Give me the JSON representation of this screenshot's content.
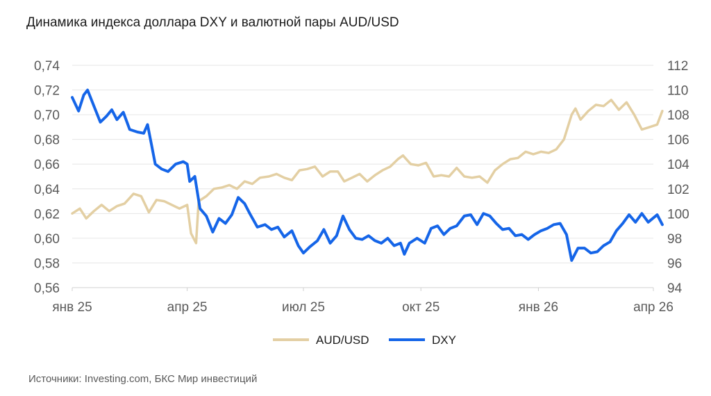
{
  "chart": {
    "title": "Динамика индекса доллара DXY и валютной пары AUD/USD",
    "source": "Источники: Investing.com, БКС Мир инвестиций"
  },
  "chart_data": {
    "type": "line",
    "title": "Динамика индекса доллара DXY и валютной пары AUD/USD",
    "x_ticks": [
      "янв 25",
      "апр 25",
      "июл 25",
      "окт 25",
      "янв 26",
      "апр 26"
    ],
    "x_tick_dates": [
      "2025-01-01",
      "2025-04-01",
      "2025-07-01",
      "2025-10-01",
      "2026-01-01",
      "2026-04-01"
    ],
    "y_left": {
      "ticks": [
        "0,74",
        "0,72",
        "0,70",
        "0,68",
        "0,66",
        "0,64",
        "0,62",
        "0,60",
        "0,58",
        "0,56"
      ],
      "range": [
        0.56,
        0.74
      ]
    },
    "y_right": {
      "ticks": [
        "112",
        "110",
        "108",
        "106",
        "104",
        "102",
        "100",
        "98",
        "96",
        "94"
      ],
      "range": [
        94,
        112
      ]
    },
    "grid": "horizontal",
    "legend_position": "bottom-center",
    "series": [
      {
        "name": "AUD/USD",
        "axis": "left",
        "color": "#e3cfa3",
        "points": [
          [
            "2025-01-01",
            0.62
          ],
          [
            "2025-01-07",
            0.624
          ],
          [
            "2025-01-12",
            0.616
          ],
          [
            "2025-01-18",
            0.622
          ],
          [
            "2025-01-24",
            0.627
          ],
          [
            "2025-01-30",
            0.622
          ],
          [
            "2025-02-05",
            0.626
          ],
          [
            "2025-02-11",
            0.628
          ],
          [
            "2025-02-18",
            0.636
          ],
          [
            "2025-02-24",
            0.634
          ],
          [
            "2025-03-02",
            0.621
          ],
          [
            "2025-03-08",
            0.631
          ],
          [
            "2025-03-14",
            0.63
          ],
          [
            "2025-03-20",
            0.627
          ],
          [
            "2025-03-26",
            0.624
          ],
          [
            "2025-04-01",
            0.627
          ],
          [
            "2025-04-04",
            0.604
          ],
          [
            "2025-04-08",
            0.596
          ],
          [
            "2025-04-10",
            0.63
          ],
          [
            "2025-04-16",
            0.634
          ],
          [
            "2025-04-22",
            0.64
          ],
          [
            "2025-04-28",
            0.641
          ],
          [
            "2025-05-04",
            0.643
          ],
          [
            "2025-05-10",
            0.64
          ],
          [
            "2025-05-16",
            0.646
          ],
          [
            "2025-05-22",
            0.644
          ],
          [
            "2025-05-28",
            0.649
          ],
          [
            "2025-06-04",
            0.65
          ],
          [
            "2025-06-10",
            0.652
          ],
          [
            "2025-06-16",
            0.649
          ],
          [
            "2025-06-22",
            0.647
          ],
          [
            "2025-06-28",
            0.655
          ],
          [
            "2025-07-04",
            0.656
          ],
          [
            "2025-07-10",
            0.658
          ],
          [
            "2025-07-16",
            0.65
          ],
          [
            "2025-07-22",
            0.654
          ],
          [
            "2025-07-28",
            0.654
          ],
          [
            "2025-08-02",
            0.646
          ],
          [
            "2025-08-08",
            0.649
          ],
          [
            "2025-08-14",
            0.652
          ],
          [
            "2025-08-20",
            0.646
          ],
          [
            "2025-08-26",
            0.651
          ],
          [
            "2025-09-01",
            0.655
          ],
          [
            "2025-09-07",
            0.658
          ],
          [
            "2025-09-13",
            0.664
          ],
          [
            "2025-09-17",
            0.667
          ],
          [
            "2025-09-23",
            0.66
          ],
          [
            "2025-09-29",
            0.659
          ],
          [
            "2025-10-05",
            0.661
          ],
          [
            "2025-10-11",
            0.65
          ],
          [
            "2025-10-17",
            0.651
          ],
          [
            "2025-10-23",
            0.65
          ],
          [
            "2025-10-29",
            0.657
          ],
          [
            "2025-11-04",
            0.65
          ],
          [
            "2025-11-10",
            0.649
          ],
          [
            "2025-11-16",
            0.65
          ],
          [
            "2025-11-22",
            0.645
          ],
          [
            "2025-11-28",
            0.655
          ],
          [
            "2025-12-04",
            0.66
          ],
          [
            "2025-12-10",
            0.664
          ],
          [
            "2025-12-16",
            0.665
          ],
          [
            "2025-12-22",
            0.67
          ],
          [
            "2025-12-28",
            0.668
          ],
          [
            "2026-01-03",
            0.67
          ],
          [
            "2026-01-09",
            0.669
          ],
          [
            "2026-01-15",
            0.672
          ],
          [
            "2026-01-21",
            0.68
          ],
          [
            "2026-01-27",
            0.7
          ],
          [
            "2026-01-30",
            0.705
          ],
          [
            "2026-02-03",
            0.696
          ],
          [
            "2026-02-09",
            0.703
          ],
          [
            "2026-02-15",
            0.708
          ],
          [
            "2026-02-21",
            0.707
          ],
          [
            "2026-02-27",
            0.712
          ],
          [
            "2026-03-05",
            0.704
          ],
          [
            "2026-03-11",
            0.71
          ],
          [
            "2026-03-17",
            0.7
          ],
          [
            "2026-03-23",
            0.688
          ],
          [
            "2026-03-29",
            0.69
          ],
          [
            "2026-04-04",
            0.692
          ],
          [
            "2026-04-08",
            0.703
          ]
        ]
      },
      {
        "name": "DXY",
        "axis": "right",
        "color": "#1565e8",
        "points": [
          [
            "2025-01-01",
            109.4
          ],
          [
            "2025-01-06",
            108.3
          ],
          [
            "2025-01-10",
            109.6
          ],
          [
            "2025-01-13",
            110.0
          ],
          [
            "2025-01-18",
            108.7
          ],
          [
            "2025-01-23",
            107.4
          ],
          [
            "2025-01-28",
            107.9
          ],
          [
            "2025-02-01",
            108.4
          ],
          [
            "2025-02-05",
            107.6
          ],
          [
            "2025-02-10",
            108.2
          ],
          [
            "2025-02-15",
            106.8
          ],
          [
            "2025-02-21",
            106.6
          ],
          [
            "2025-02-26",
            106.5
          ],
          [
            "2025-03-01",
            107.2
          ],
          [
            "2025-03-04",
            105.6
          ],
          [
            "2025-03-07",
            104.0
          ],
          [
            "2025-03-12",
            103.6
          ],
          [
            "2025-03-17",
            103.4
          ],
          [
            "2025-03-23",
            104.0
          ],
          [
            "2025-03-29",
            104.2
          ],
          [
            "2025-04-01",
            104.0
          ],
          [
            "2025-04-03",
            102.6
          ],
          [
            "2025-04-07",
            103.0
          ],
          [
            "2025-04-11",
            100.4
          ],
          [
            "2025-04-16",
            99.8
          ],
          [
            "2025-04-21",
            98.5
          ],
          [
            "2025-04-26",
            99.6
          ],
          [
            "2025-05-01",
            99.2
          ],
          [
            "2025-05-06",
            99.9
          ],
          [
            "2025-05-11",
            101.3
          ],
          [
            "2025-05-16",
            100.8
          ],
          [
            "2025-05-20",
            100.0
          ],
          [
            "2025-05-26",
            98.9
          ],
          [
            "2025-06-01",
            99.1
          ],
          [
            "2025-06-06",
            98.7
          ],
          [
            "2025-06-11",
            98.9
          ],
          [
            "2025-06-16",
            98.1
          ],
          [
            "2025-06-22",
            98.6
          ],
          [
            "2025-06-27",
            97.4
          ],
          [
            "2025-07-01",
            96.8
          ],
          [
            "2025-07-06",
            97.3
          ],
          [
            "2025-07-12",
            97.8
          ],
          [
            "2025-07-17",
            98.7
          ],
          [
            "2025-07-22",
            97.6
          ],
          [
            "2025-07-27",
            98.2
          ],
          [
            "2025-08-01",
            99.8
          ],
          [
            "2025-08-06",
            98.7
          ],
          [
            "2025-08-11",
            98.0
          ],
          [
            "2025-08-16",
            97.9
          ],
          [
            "2025-08-21",
            98.2
          ],
          [
            "2025-08-26",
            97.8
          ],
          [
            "2025-08-31",
            97.6
          ],
          [
            "2025-09-05",
            98.0
          ],
          [
            "2025-09-10",
            97.4
          ],
          [
            "2025-09-15",
            97.6
          ],
          [
            "2025-09-18",
            96.7
          ],
          [
            "2025-09-22",
            97.6
          ],
          [
            "2025-09-28",
            98.0
          ],
          [
            "2025-10-04",
            97.6
          ],
          [
            "2025-10-09",
            98.8
          ],
          [
            "2025-10-14",
            99.0
          ],
          [
            "2025-10-19",
            98.3
          ],
          [
            "2025-10-24",
            98.8
          ],
          [
            "2025-10-29",
            99.0
          ],
          [
            "2025-11-04",
            99.8
          ],
          [
            "2025-11-09",
            99.9
          ],
          [
            "2025-11-14",
            99.1
          ],
          [
            "2025-11-19",
            100.0
          ],
          [
            "2025-11-24",
            99.8
          ],
          [
            "2025-11-29",
            99.2
          ],
          [
            "2025-12-04",
            98.7
          ],
          [
            "2025-12-09",
            98.8
          ],
          [
            "2025-12-14",
            98.2
          ],
          [
            "2025-12-19",
            98.3
          ],
          [
            "2025-12-24",
            97.9
          ],
          [
            "2025-12-29",
            98.3
          ],
          [
            "2026-01-03",
            98.6
          ],
          [
            "2026-01-08",
            98.8
          ],
          [
            "2026-01-13",
            99.1
          ],
          [
            "2026-01-18",
            99.2
          ],
          [
            "2026-01-23",
            98.3
          ],
          [
            "2026-01-27",
            96.2
          ],
          [
            "2026-02-01",
            97.2
          ],
          [
            "2026-02-06",
            97.2
          ],
          [
            "2026-02-11",
            96.8
          ],
          [
            "2026-02-16",
            96.9
          ],
          [
            "2026-02-21",
            97.4
          ],
          [
            "2026-02-26",
            97.7
          ],
          [
            "2026-03-03",
            98.6
          ],
          [
            "2026-03-08",
            99.2
          ],
          [
            "2026-03-13",
            99.9
          ],
          [
            "2026-03-18",
            99.3
          ],
          [
            "2026-03-23",
            100.0
          ],
          [
            "2026-03-28",
            99.3
          ],
          [
            "2026-04-04",
            99.9
          ],
          [
            "2026-04-08",
            99.1
          ]
        ]
      }
    ]
  }
}
